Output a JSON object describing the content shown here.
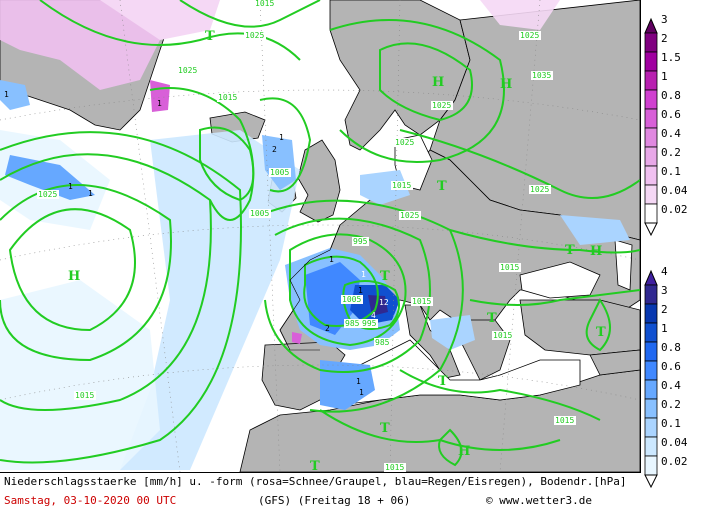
{
  "caption": {
    "line1": "Niederschlagsstaerke [mm/h] u. -form (rosa=Schnee/Graupel, blau=Regen/Eisregen), Bodendr.[hPa]",
    "date": "Samstag, 03-10-2020  00 UTC",
    "model": "(GFS)  (Freitag 18 + 06)",
    "copyright": "© www.wetter3.de"
  },
  "snow_scale": {
    "colors": [
      "#ffffff",
      "#f5d8f5",
      "#f0c0f0",
      "#e8a8e8",
      "#e088e0",
      "#d860d8",
      "#d040d0",
      "#b820b0",
      "#a000a0",
      "#800080",
      "#600060"
    ],
    "labels": [
      "0.02",
      "0.04",
      "0.1",
      "0.2",
      "0.4",
      "0.6",
      "0.8",
      "1",
      "1.5",
      "2",
      "3"
    ]
  },
  "rain_scale": {
    "colors": [
      "#e8f6ff",
      "#cce8ff",
      "#aad4ff",
      "#88c0ff",
      "#66a8ff",
      "#4088ff",
      "#2068f0",
      "#1050d0",
      "#0838b0",
      "#302890",
      "#4020a0"
    ],
    "labels": [
      "0.02",
      "0.04",
      "0.1",
      "0.2",
      "0.4",
      "0.6",
      "0.8",
      "1",
      "2",
      "3",
      "4"
    ]
  },
  "isobar_labels": [
    "1015",
    "1025",
    "1025",
    "1025",
    "1015",
    "1035",
    "1025",
    "1005",
    "1015",
    "1025",
    "1025",
    "1015",
    "1015",
    "1015",
    "1005",
    "1015",
    "995",
    "985",
    "995",
    "985",
    "1015",
    "1025",
    "1025",
    "1015",
    "1005"
  ],
  "pressure_centers": [
    "H",
    "H",
    "H",
    "H",
    "T",
    "T",
    "T",
    "T",
    "T",
    "T",
    "H",
    "T",
    "T",
    "T"
  ],
  "rain_labels": [
    "1",
    "1",
    "1",
    "1",
    "2",
    "1",
    "1",
    "1",
    "4",
    "12",
    "2",
    "1",
    "1",
    "1"
  ],
  "map_colors": {
    "land": "#b4b4b4",
    "sea": "#ffffff",
    "isobar": "#22cc22",
    "coast": "#000000",
    "grid": "#888888"
  }
}
